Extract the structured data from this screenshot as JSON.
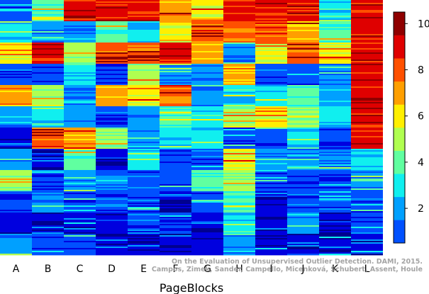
{
  "chart_data": {
    "type": "heatmap",
    "title": "",
    "xlabel": "PageBlocks",
    "ylabel": "",
    "categories": [
      "A",
      "B",
      "C",
      "D",
      "E",
      "F",
      "G",
      "H",
      "I",
      "J",
      "K",
      "L"
    ],
    "colorbar": {
      "range": [
        0.5,
        10.5
      ],
      "ticks": [
        "2",
        "4",
        "6",
        "8",
        "10"
      ],
      "levels": 10,
      "colormap": "jet",
      "colors": [
        "#00008F",
        "#0000DF",
        "#0050FF",
        "#00A0FF",
        "#10EFEF",
        "#60FFA0",
        "#B0FF50",
        "#FFEF00",
        "#FF9F00",
        "#FF5000",
        "#DF0000",
        "#8F0000"
      ]
    },
    "rank_bands": [
      {
        "name": "A",
        "values": [
          2,
          4,
          7,
          2,
          8,
          3,
          1,
          3,
          6,
          2,
          1,
          3
        ]
      },
      {
        "name": "B",
        "values": [
          5,
          3,
          10,
          2,
          6,
          4,
          9,
          1,
          2,
          3,
          1,
          2
        ]
      },
      {
        "name": "C",
        "values": [
          10,
          3,
          6,
          4,
          3,
          3,
          8,
          5,
          3,
          2,
          1,
          2
        ]
      },
      {
        "name": "D",
        "values": [
          10,
          5,
          9,
          2,
          8,
          2,
          6,
          1,
          3,
          2,
          1,
          1
        ]
      },
      {
        "name": "E",
        "values": [
          10,
          4,
          9,
          6,
          7,
          3,
          3,
          4,
          2,
          2,
          2,
          1
        ]
      },
      {
        "name": "F",
        "values": [
          8,
          7,
          10,
          3,
          9,
          5,
          4,
          2,
          2,
          1,
          2,
          1
        ]
      },
      {
        "name": "G",
        "values": [
          7,
          9,
          8,
          3,
          3,
          4,
          4,
          2,
          5,
          2,
          1,
          1
        ]
      },
      {
        "name": "H",
        "values": [
          10,
          9,
          3,
          8,
          4,
          6,
          2,
          7,
          6,
          5,
          4,
          3
        ]
      },
      {
        "name": "I",
        "values": [
          10,
          9,
          7,
          2,
          4,
          7,
          2,
          3,
          2,
          1,
          1,
          1
        ]
      },
      {
        "name": "J",
        "values": [
          10,
          8,
          9,
          2,
          5,
          6,
          4,
          3,
          2,
          2,
          3,
          1
        ]
      },
      {
        "name": "K",
        "values": [
          4,
          5,
          7,
          3,
          3,
          4,
          2,
          3,
          2,
          2,
          1,
          1
        ]
      },
      {
        "name": "L",
        "values": [
          10,
          10,
          10,
          10,
          10,
          10,
          10,
          4,
          3,
          2,
          2,
          1
        ]
      }
    ]
  },
  "watermark": {
    "line1": "On the Evaluation of Unsupervised Outlier Detection. DAMI, 2015.",
    "line2": "Campos, Zimek, Sander, Campello, Micenková, Schubert, Assent, Houle"
  }
}
